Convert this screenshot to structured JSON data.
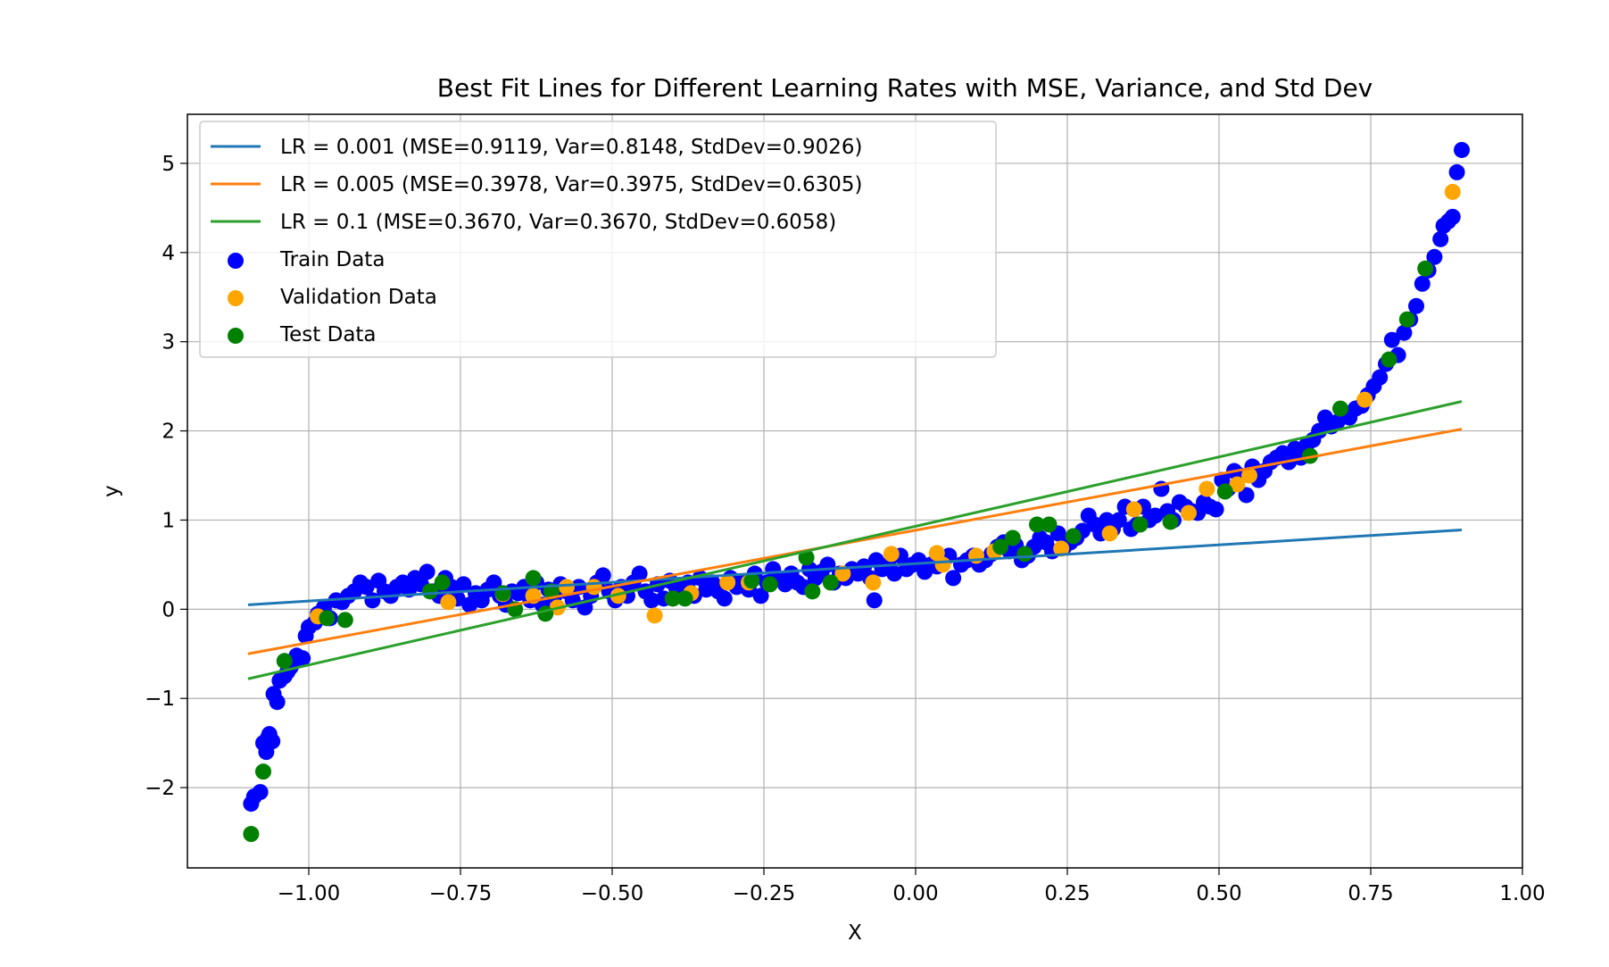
{
  "chart_data": {
    "type": "scatter",
    "title": "Best Fit Lines for Different Learning Rates with MSE, Variance, and Std Dev",
    "xlabel": "X",
    "ylabel": "y",
    "xlim": [
      -1.2,
      1.0
    ],
    "ylim": [
      -2.9,
      5.55
    ],
    "grid": true,
    "legend_position": "top-left",
    "x_ticks": [
      -1.0,
      -0.75,
      -0.5,
      -0.25,
      0.0,
      0.25,
      0.5,
      0.75,
      1.0
    ],
    "x_tick_labels": [
      "−1.00",
      "−0.75",
      "−0.50",
      "−0.25",
      "0.00",
      "0.25",
      "0.50",
      "0.75",
      "1.00"
    ],
    "y_ticks": [
      -2,
      -1,
      0,
      1,
      2,
      3,
      4,
      5
    ],
    "y_tick_labels": [
      "−2",
      "−1",
      "0",
      "1",
      "2",
      "3",
      "4",
      "5"
    ],
    "lines": [
      {
        "name": "LR = 0.001 (MSE=0.9119, Var=0.8148, StdDev=0.9026)",
        "color": "#1f77b4",
        "x": [
          -1.1,
          0.9
        ],
        "y": [
          0.05,
          0.89
        ]
      },
      {
        "name": "LR = 0.005 (MSE=0.3978, Var=0.3975, StdDev=0.6305)",
        "color": "#ff7f0e",
        "x": [
          -1.1,
          0.9
        ],
        "y": [
          -0.5,
          2.02
        ]
      },
      {
        "name": "LR = 0.1 (MSE=0.3670, Var=0.3670, StdDev=0.6058)",
        "color": "#2ca02c",
        "x": [
          -1.1,
          0.9
        ],
        "y": [
          -0.78,
          2.33
        ]
      }
    ],
    "series": [
      {
        "name": "Train Data",
        "color": "#0000ff",
        "points": [
          [
            -1.095,
            -2.18
          ],
          [
            -1.09,
            -2.1
          ],
          [
            -1.08,
            -2.05
          ],
          [
            -1.075,
            -1.5
          ],
          [
            -1.07,
            -1.6
          ],
          [
            -1.068,
            -1.45
          ],
          [
            -1.065,
            -1.4
          ],
          [
            -1.06,
            -1.48
          ],
          [
            -1.058,
            -0.95
          ],
          [
            -1.052,
            -1.04
          ],
          [
            -1.048,
            -0.8
          ],
          [
            -1.04,
            -0.75
          ],
          [
            -1.035,
            -0.7
          ],
          [
            -1.03,
            -0.65
          ],
          [
            -1.025,
            -0.6
          ],
          [
            -1.02,
            -0.52
          ],
          [
            -1.01,
            -0.55
          ],
          [
            -1.005,
            -0.3
          ],
          [
            -1.0,
            -0.2
          ],
          [
            -0.99,
            -0.15
          ],
          [
            -0.985,
            -0.05
          ],
          [
            -0.975,
            0.02
          ],
          [
            -0.965,
            -0.1
          ],
          [
            -0.955,
            0.1
          ],
          [
            -0.945,
            0.08
          ],
          [
            -0.935,
            0.15
          ],
          [
            -0.925,
            0.2
          ],
          [
            -0.915,
            0.3
          ],
          [
            -0.905,
            0.25
          ],
          [
            -0.895,
            0.1
          ],
          [
            -0.885,
            0.32
          ],
          [
            -0.875,
            0.2
          ],
          [
            -0.865,
            0.15
          ],
          [
            -0.855,
            0.25
          ],
          [
            -0.845,
            0.3
          ],
          [
            -0.835,
            0.22
          ],
          [
            -0.825,
            0.35
          ],
          [
            -0.815,
            0.28
          ],
          [
            -0.805,
            0.42
          ],
          [
            -0.795,
            0.2
          ],
          [
            -0.785,
            0.15
          ],
          [
            -0.775,
            0.35
          ],
          [
            -0.765,
            0.25
          ],
          [
            -0.755,
            0.12
          ],
          [
            -0.745,
            0.28
          ],
          [
            -0.735,
            0.05
          ],
          [
            -0.725,
            0.18
          ],
          [
            -0.715,
            0.1
          ],
          [
            -0.705,
            0.22
          ],
          [
            -0.695,
            0.3
          ],
          [
            -0.685,
            0.15
          ],
          [
            -0.675,
            0.05
          ],
          [
            -0.665,
            0.2
          ],
          [
            -0.655,
            0.18
          ],
          [
            -0.645,
            0.25
          ],
          [
            -0.635,
            0.1
          ],
          [
            -0.625,
            0.3
          ],
          [
            -0.615,
            0.05
          ],
          [
            -0.605,
            0.22
          ],
          [
            -0.595,
            0.15
          ],
          [
            -0.585,
            0.28
          ],
          [
            -0.575,
            0.2
          ],
          [
            -0.565,
            0.1
          ],
          [
            -0.555,
            0.25
          ],
          [
            -0.545,
            0.02
          ],
          [
            -0.535,
            0.15
          ],
          [
            -0.525,
            0.3
          ],
          [
            -0.515,
            0.38
          ],
          [
            -0.505,
            0.2
          ],
          [
            -0.495,
            0.1
          ],
          [
            -0.485,
            0.25
          ],
          [
            -0.475,
            0.15
          ],
          [
            -0.465,
            0.3
          ],
          [
            -0.455,
            0.4
          ],
          [
            -0.445,
            0.2
          ],
          [
            -0.435,
            0.1
          ],
          [
            -0.425,
            0.28
          ],
          [
            -0.415,
            0.12
          ],
          [
            -0.405,
            0.32
          ],
          [
            -0.395,
            0.25
          ],
          [
            -0.385,
            0.18
          ],
          [
            -0.375,
            0.3
          ],
          [
            -0.365,
            0.15
          ],
          [
            -0.355,
            0.35
          ],
          [
            -0.345,
            0.22
          ],
          [
            -0.335,
            0.3
          ],
          [
            -0.325,
            0.2
          ],
          [
            -0.315,
            0.12
          ],
          [
            -0.305,
            0.35
          ],
          [
            -0.295,
            0.25
          ],
          [
            -0.285,
            0.3
          ],
          [
            -0.275,
            0.22
          ],
          [
            -0.265,
            0.4
          ],
          [
            -0.255,
            0.15
          ],
          [
            -0.245,
            0.3
          ],
          [
            -0.235,
            0.45
          ],
          [
            -0.225,
            0.35
          ],
          [
            -0.215,
            0.28
          ],
          [
            -0.205,
            0.4
          ],
          [
            -0.195,
            0.3
          ],
          [
            -0.185,
            0.25
          ],
          [
            -0.175,
            0.45
          ],
          [
            -0.165,
            0.35
          ],
          [
            -0.155,
            0.42
          ],
          [
            -0.145,
            0.5
          ],
          [
            -0.135,
            0.3
          ],
          [
            -0.125,
            0.4
          ],
          [
            -0.115,
            0.35
          ],
          [
            -0.105,
            0.45
          ],
          [
            -0.095,
            0.4
          ],
          [
            -0.085,
            0.48
          ],
          [
            -0.075,
            0.35
          ],
          [
            -0.068,
            0.1
          ],
          [
            -0.065,
            0.55
          ],
          [
            -0.055,
            0.45
          ],
          [
            -0.045,
            0.5
          ],
          [
            -0.035,
            0.4
          ],
          [
            -0.025,
            0.6
          ],
          [
            -0.015,
            0.45
          ],
          [
            -0.005,
            0.5
          ],
          [
            0.005,
            0.55
          ],
          [
            0.015,
            0.42
          ],
          [
            0.025,
            0.5
          ],
          [
            0.035,
            0.48
          ],
          [
            0.045,
            0.55
          ],
          [
            0.055,
            0.6
          ],
          [
            0.062,
            0.35
          ],
          [
            0.075,
            0.5
          ],
          [
            0.085,
            0.55
          ],
          [
            0.095,
            0.6
          ],
          [
            0.105,
            0.5
          ],
          [
            0.115,
            0.55
          ],
          [
            0.125,
            0.62
          ],
          [
            0.135,
            0.7
          ],
          [
            0.145,
            0.75
          ],
          [
            0.155,
            0.65
          ],
          [
            0.165,
            0.72
          ],
          [
            0.175,
            0.55
          ],
          [
            0.185,
            0.6
          ],
          [
            0.195,
            0.7
          ],
          [
            0.205,
            0.8
          ],
          [
            0.215,
            0.75
          ],
          [
            0.225,
            0.65
          ],
          [
            0.235,
            0.85
          ],
          [
            0.245,
            0.7
          ],
          [
            0.255,
            0.75
          ],
          [
            0.265,
            0.8
          ],
          [
            0.275,
            0.88
          ],
          [
            0.285,
            1.05
          ],
          [
            0.295,
            0.95
          ],
          [
            0.305,
            0.85
          ],
          [
            0.315,
            1.0
          ],
          [
            0.325,
            0.9
          ],
          [
            0.335,
            1.0
          ],
          [
            0.345,
            1.15
          ],
          [
            0.355,
            0.9
          ],
          [
            0.365,
            0.95
          ],
          [
            0.375,
            1.15
          ],
          [
            0.385,
            1.0
          ],
          [
            0.395,
            1.05
          ],
          [
            0.405,
            1.35
          ],
          [
            0.415,
            1.1
          ],
          [
            0.425,
            1.0
          ],
          [
            0.435,
            1.2
          ],
          [
            0.445,
            1.15
          ],
          [
            0.455,
            1.1
          ],
          [
            0.465,
            1.08
          ],
          [
            0.475,
            1.2
          ],
          [
            0.485,
            1.15
          ],
          [
            0.495,
            1.12
          ],
          [
            0.505,
            1.45
          ],
          [
            0.515,
            1.35
          ],
          [
            0.525,
            1.55
          ],
          [
            0.535,
            1.5
          ],
          [
            0.545,
            1.28
          ],
          [
            0.555,
            1.6
          ],
          [
            0.565,
            1.45
          ],
          [
            0.575,
            1.55
          ],
          [
            0.585,
            1.65
          ],
          [
            0.595,
            1.7
          ],
          [
            0.605,
            1.75
          ],
          [
            0.615,
            1.65
          ],
          [
            0.625,
            1.8
          ],
          [
            0.635,
            1.7
          ],
          [
            0.645,
            1.85
          ],
          [
            0.655,
            1.9
          ],
          [
            0.665,
            2.0
          ],
          [
            0.675,
            2.15
          ],
          [
            0.685,
            2.05
          ],
          [
            0.695,
            2.1
          ],
          [
            0.705,
            2.2
          ],
          [
            0.715,
            2.15
          ],
          [
            0.725,
            2.25
          ],
          [
            0.735,
            2.28
          ],
          [
            0.745,
            2.4
          ],
          [
            0.755,
            2.5
          ],
          [
            0.765,
            2.6
          ],
          [
            0.775,
            2.75
          ],
          [
            0.785,
            3.02
          ],
          [
            0.795,
            2.85
          ],
          [
            0.805,
            3.1
          ],
          [
            0.815,
            3.25
          ],
          [
            0.825,
            3.4
          ],
          [
            0.835,
            3.65
          ],
          [
            0.845,
            3.8
          ],
          [
            0.855,
            3.95
          ],
          [
            0.865,
            4.15
          ],
          [
            0.87,
            4.3
          ],
          [
            0.878,
            4.35
          ],
          [
            0.885,
            4.4
          ],
          [
            0.892,
            4.9
          ],
          [
            0.9,
            5.15
          ]
        ]
      },
      {
        "name": "Validation Data",
        "color": "#ffa500",
        "points": [
          [
            -0.985,
            -0.08
          ],
          [
            -0.77,
            0.08
          ],
          [
            -0.68,
            0.17
          ],
          [
            -0.63,
            0.15
          ],
          [
            -0.59,
            0.02
          ],
          [
            -0.575,
            0.25
          ],
          [
            -0.53,
            0.25
          ],
          [
            -0.49,
            0.15
          ],
          [
            -0.43,
            -0.07
          ],
          [
            -0.4,
            0.12
          ],
          [
            -0.37,
            0.18
          ],
          [
            -0.31,
            0.3
          ],
          [
            -0.275,
            0.3
          ],
          [
            -0.12,
            0.4
          ],
          [
            -0.07,
            0.3
          ],
          [
            -0.04,
            0.62
          ],
          [
            0.035,
            0.63
          ],
          [
            0.045,
            0.5
          ],
          [
            0.1,
            0.6
          ],
          [
            0.13,
            0.65
          ],
          [
            0.24,
            0.68
          ],
          [
            0.32,
            0.85
          ],
          [
            0.36,
            1.12
          ],
          [
            0.45,
            1.08
          ],
          [
            0.48,
            1.35
          ],
          [
            0.53,
            1.4
          ],
          [
            0.55,
            1.5
          ],
          [
            0.74,
            2.35
          ],
          [
            0.885,
            4.68
          ]
        ]
      },
      {
        "name": "Test Data",
        "color": "#008000",
        "points": [
          [
            -1.095,
            -2.52
          ],
          [
            -1.075,
            -1.82
          ],
          [
            -1.04,
            -0.58
          ],
          [
            -0.97,
            -0.1
          ],
          [
            -0.94,
            -0.12
          ],
          [
            -0.8,
            0.2
          ],
          [
            -0.78,
            0.3
          ],
          [
            -0.68,
            0.18
          ],
          [
            -0.66,
            0.0
          ],
          [
            -0.63,
            0.35
          ],
          [
            -0.61,
            -0.05
          ],
          [
            -0.6,
            0.2
          ],
          [
            -0.4,
            0.12
          ],
          [
            -0.38,
            0.12
          ],
          [
            -0.27,
            0.32
          ],
          [
            -0.24,
            0.28
          ],
          [
            -0.18,
            0.58
          ],
          [
            -0.17,
            0.2
          ],
          [
            -0.14,
            0.3
          ],
          [
            0.14,
            0.7
          ],
          [
            0.16,
            0.8
          ],
          [
            0.18,
            0.62
          ],
          [
            0.2,
            0.95
          ],
          [
            0.22,
            0.95
          ],
          [
            0.26,
            0.82
          ],
          [
            0.37,
            0.95
          ],
          [
            0.42,
            0.98
          ],
          [
            0.51,
            1.32
          ],
          [
            0.65,
            1.72
          ],
          [
            0.7,
            2.25
          ],
          [
            0.78,
            2.8
          ],
          [
            0.81,
            3.25
          ],
          [
            0.84,
            3.82
          ]
        ]
      }
    ]
  }
}
